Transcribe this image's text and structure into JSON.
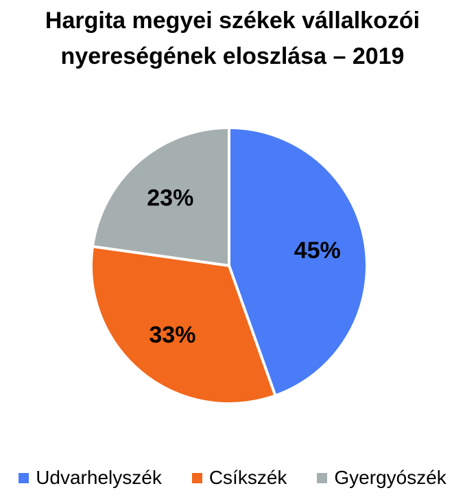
{
  "chart_data": {
    "type": "pie",
    "title_lines": [
      "Hargita megyei székek vállalkozói",
      "nyereségének eloszlása – 2019"
    ],
    "legend_position": "bottom",
    "slices": [
      {
        "name": "Udvarhelyszék",
        "value": 45,
        "label": "45%",
        "color": "#4A7CF7"
      },
      {
        "name": "Csíkszék",
        "value": 33,
        "label": "33%",
        "color": "#F2681C"
      },
      {
        "name": "Gyergyószék",
        "value": 23,
        "label": "23%",
        "color": "#A5AFAF"
      }
    ]
  }
}
